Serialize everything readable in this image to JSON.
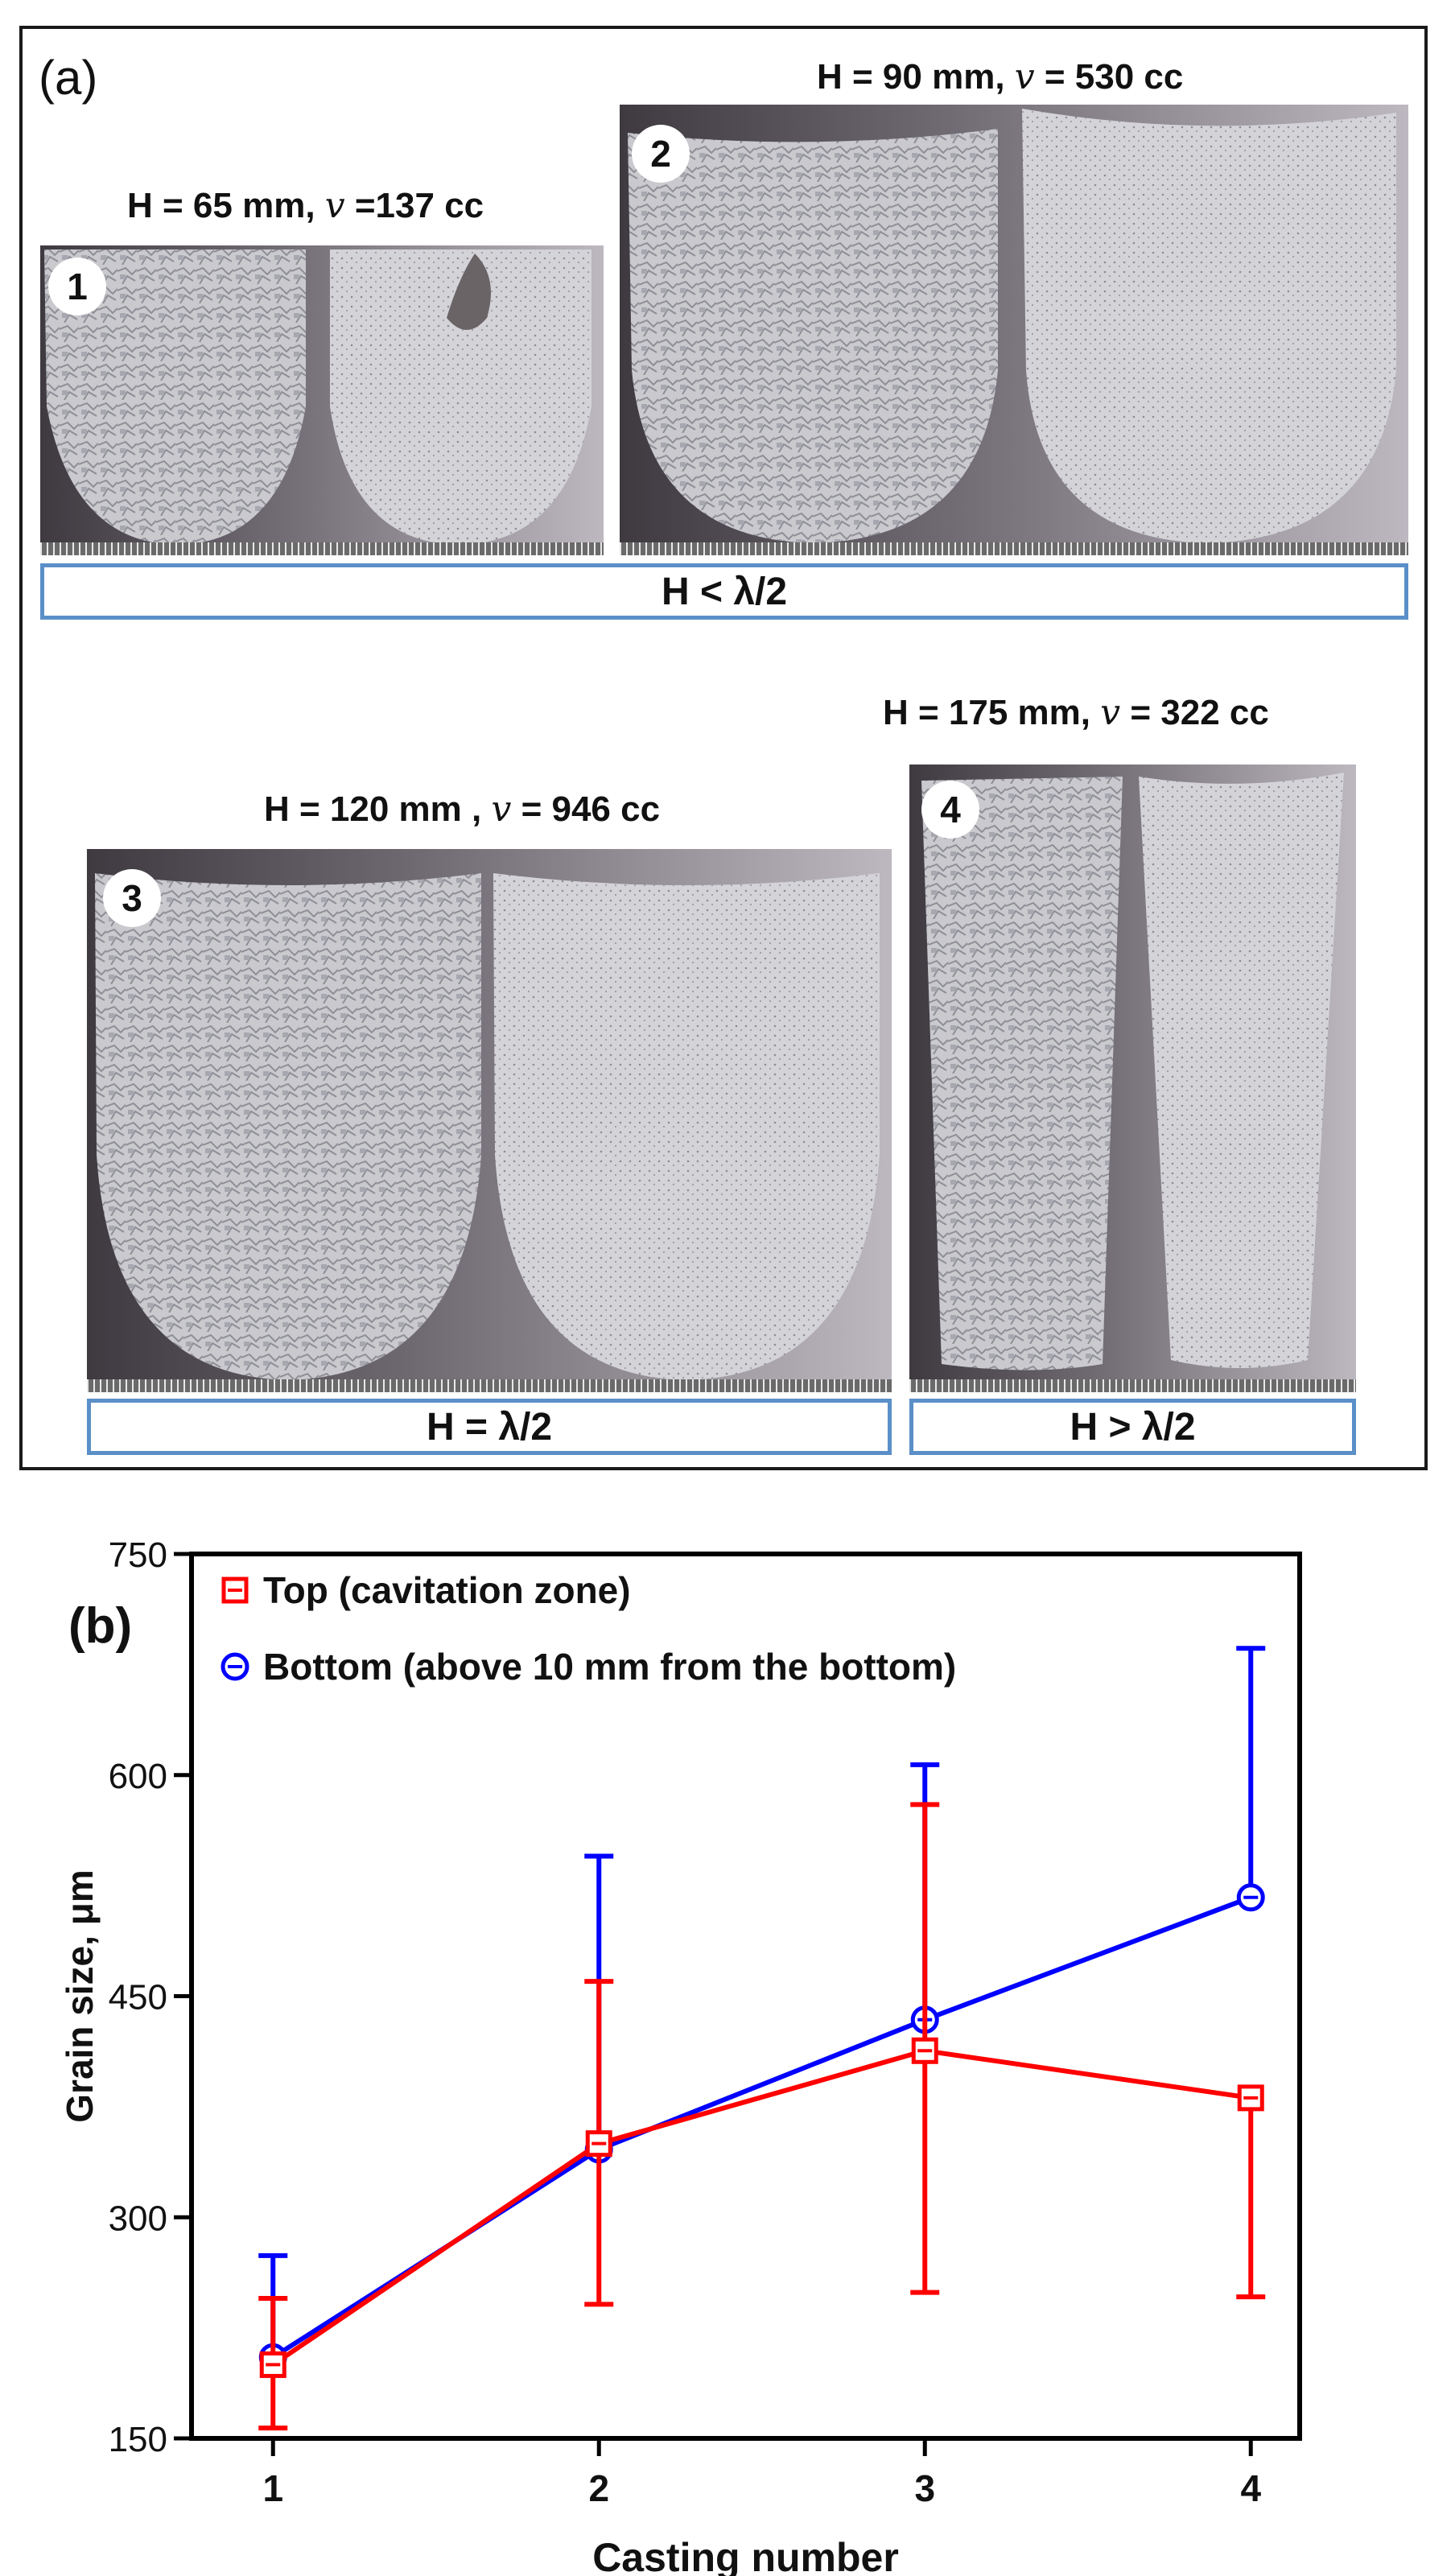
{
  "panel_a": {
    "label": "(a)",
    "groups": [
      {
        "number": "1",
        "caption_pre": "H = 65 mm, ",
        "caption_var": "v",
        "caption_post": " =137 cc"
      },
      {
        "number": "2",
        "caption_pre": "H = 90 mm, ",
        "caption_var": "v",
        "caption_post": " = 530 cc"
      },
      {
        "number": "3",
        "caption_pre": "H = 120 mm , ",
        "caption_var": "v",
        "caption_post": " = 946 cc"
      },
      {
        "number": "4",
        "caption_pre": "H = 175 mm, ",
        "caption_var": "v",
        "caption_post": " = 322 cc"
      }
    ],
    "bars": [
      "H < λ/2",
      "H = λ/2",
      "H > λ/2"
    ]
  },
  "panel_b": {
    "label": "(b)"
  },
  "colors": {
    "top": "#ff0000",
    "bottom": "#0000ff",
    "bar_border": "#5b8fc7"
  },
  "chart_data": {
    "type": "line",
    "title": "",
    "xlabel": "Casting number",
    "ylabel": "Grain size, μm",
    "x": [
      1,
      2,
      3,
      4
    ],
    "xlim": [
      0.75,
      4.15
    ],
    "ylim": [
      150,
      750
    ],
    "yticks": [
      150,
      300,
      450,
      600,
      750
    ],
    "xticks": [
      1,
      2,
      3,
      4
    ],
    "legend_position": "top-left",
    "series": [
      {
        "name": "Top (cavitation zone)",
        "marker": "square",
        "color": "#ff0000",
        "values": [
          200,
          350,
          413,
          381
        ],
        "err_low": [
          157,
          241,
          249,
          246
        ],
        "err_high": [
          245,
          460,
          580,
          381
        ]
      },
      {
        "name": "Bottom (above 10 mm from the bottom)",
        "marker": "circle",
        "color": "#0000ff",
        "values": [
          205,
          346,
          434,
          517
        ],
        "err_low": [
          205,
          346,
          434,
          517
        ],
        "err_high": [
          274,
          545,
          607,
          686
        ]
      }
    ]
  }
}
